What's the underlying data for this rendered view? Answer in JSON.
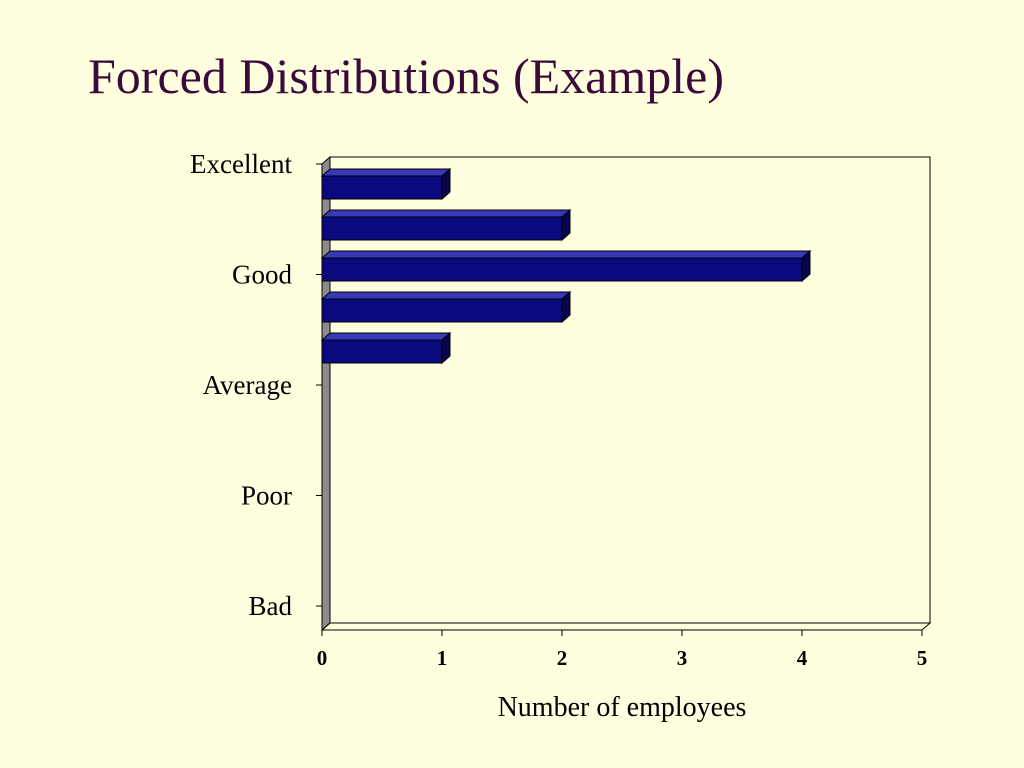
{
  "slide": {
    "title": "Forced Distributions (Example)"
  },
  "colors": {
    "background": "#FFFFE0",
    "title": "#3A0A3A",
    "bar_front": "#0A0A7E",
    "bar_top": "#3838B8",
    "bar_side": "#050550",
    "wall": "#8C8C8C"
  },
  "chart_data": {
    "type": "bar",
    "orientation": "horizontal",
    "style": "3d",
    "title": "",
    "xlabel": "Number of employees",
    "ylabel": "",
    "xlim": [
      0,
      5
    ],
    "x_ticks": [
      "0",
      "1",
      "2",
      "3",
      "4",
      "5"
    ],
    "category_labels": [
      "Excellent",
      "Good",
      "Average",
      "Poor",
      "Bad"
    ],
    "categories": [
      "",
      "",
      "",
      "",
      ""
    ],
    "values": [
      1,
      2,
      4,
      2,
      1
    ],
    "grid": false,
    "legend": "none"
  }
}
